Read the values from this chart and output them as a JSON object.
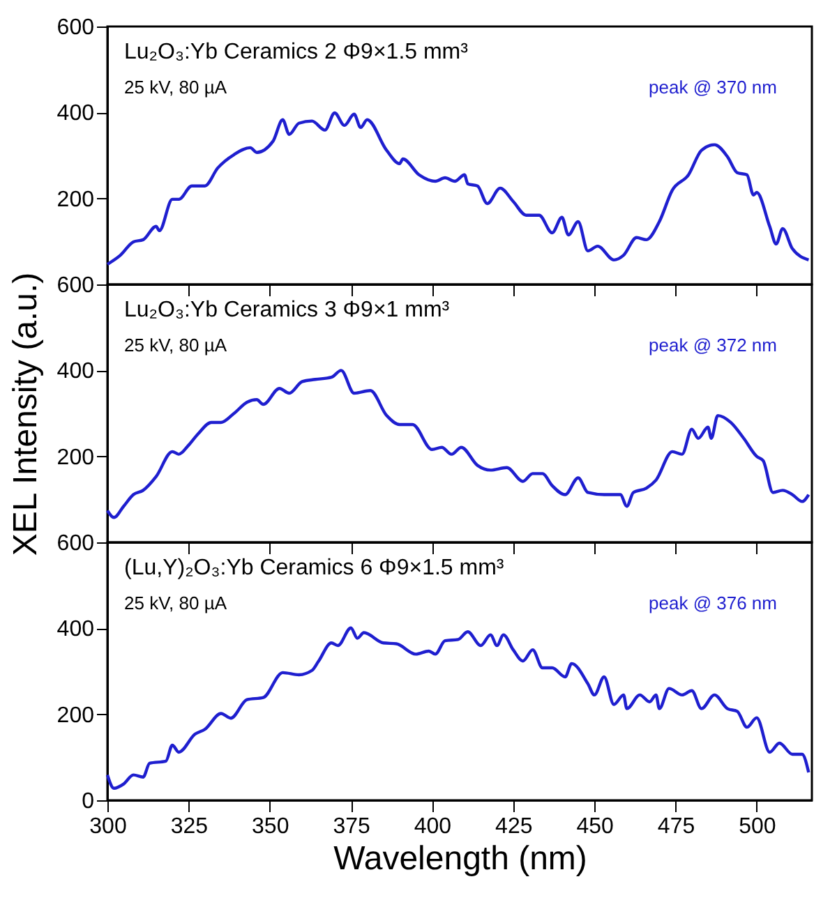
{
  "chart_data": [
    {
      "type": "line",
      "xlim": [
        300,
        517
      ],
      "ylim": [
        0,
        600
      ],
      "xticks": [
        300,
        325,
        350,
        375,
        400,
        425,
        450,
        475,
        500
      ],
      "yticks": [
        {
          "value": 0,
          "label": null
        },
        200,
        400,
        600
      ],
      "tick_labels": "y",
      "grid": false,
      "annotations": [
        "Lu₂O₃:Yb Ceramics 2  Φ9×1.5 mm³",
        "25 kV, 80 µA",
        "peak @ 370 nm"
      ],
      "series": [
        {
          "color": "#1f1fcf",
          "x": [
            300,
            304,
            308,
            311,
            315,
            316,
            320,
            322,
            326,
            330,
            334,
            339,
            344,
            346,
            351,
            354,
            356,
            359,
            363,
            367,
            370,
            373,
            376,
            378,
            380,
            386,
            390,
            391,
            396,
            401,
            404,
            407,
            410,
            411,
            414,
            417,
            421,
            425,
            429,
            433,
            437,
            440,
            442,
            445,
            448,
            451,
            456,
            459,
            463,
            466,
            470,
            474,
            479,
            483,
            487,
            491,
            494,
            497,
            499,
            500,
            504,
            506,
            508,
            511,
            516
          ],
          "values": [
            47,
            68,
            99,
            104,
            135,
            125,
            198,
            198,
            229,
            229,
            271,
            302,
            318,
            307,
            333,
            383,
            349,
            375,
            380,
            359,
            399,
            370,
            396,
            365,
            383,
            312,
            281,
            292,
            255,
            240,
            248,
            240,
            255,
            234,
            229,
            188,
            224,
            193,
            161,
            161,
            120,
            156,
            115,
            146,
            78,
            89,
            57,
            68,
            109,
            104,
            146,
            219,
            255,
            312,
            325,
            297,
            260,
            255,
            208,
            214,
            135,
            94,
            130,
            83,
            57
          ]
        }
      ]
    },
    {
      "type": "line",
      "xlim": [
        300,
        517
      ],
      "ylim": [
        0,
        600
      ],
      "xticks": [
        300,
        325,
        350,
        375,
        400,
        425,
        450,
        475,
        500
      ],
      "yticks": [
        {
          "value": 0,
          "label": null
        },
        200,
        400,
        600
      ],
      "tick_labels": "y",
      "grid": false,
      "ylabel": "XEL Intensity (a.u.)",
      "annotations": [
        "Lu₂O₃:Yb Ceramics 3  Φ9×1 mm³",
        "25 kV, 80 µA",
        "peak @ 372 nm"
      ],
      "series": [
        {
          "color": "#1f1fcf",
          "x": [
            300,
            302,
            305,
            308,
            311,
            315,
            320,
            322,
            325,
            328,
            332,
            335,
            339,
            343,
            346,
            348,
            353,
            356,
            360,
            364,
            369,
            372,
            376,
            381,
            386,
            390,
            394,
            400,
            403,
            406,
            409,
            414,
            418,
            423,
            428,
            431,
            434,
            437,
            441,
            445,
            448,
            453,
            458,
            460,
            462,
            466,
            469,
            474,
            477,
            480,
            482,
            485,
            486,
            488,
            492,
            496,
            500,
            502,
            505,
            508,
            511,
            514,
            516
          ],
          "values": [
            74,
            58,
            84,
            111,
            121,
            153,
            211,
            205,
            226,
            253,
            279,
            279,
            300,
            326,
            332,
            321,
            358,
            347,
            374,
            379,
            384,
            400,
            347,
            353,
            295,
            274,
            274,
            216,
            221,
            205,
            221,
            179,
            168,
            174,
            142,
            160,
            160,
            132,
            111,
            150,
            116,
            111,
            111,
            84,
            116,
            126,
            145,
            211,
            205,
            263,
            242,
            268,
            242,
            295,
            279,
            242,
            200,
            190,
            116,
            121,
            111,
            95,
            111
          ]
        }
      ]
    },
    {
      "type": "line",
      "xlim": [
        300,
        517
      ],
      "ylim": [
        0,
        600
      ],
      "xticks": [
        300,
        325,
        350,
        375,
        400,
        425,
        450,
        475,
        500
      ],
      "yticks": [
        0,
        200,
        400,
        600
      ],
      "grid": false,
      "xlabel": "Wavelength (nm)",
      "annotations": [
        "(Lu,Y)₂O₃:Yb Ceramics 6  Φ9×1.5 mm³",
        "25 kV, 80 µA",
        "peak @ 376 nm"
      ],
      "series": [
        {
          "color": "#1f1fcf",
          "x": [
            300,
            302,
            305,
            308,
            311,
            313,
            318,
            320,
            322,
            327,
            330,
            335,
            338,
            343,
            348,
            354,
            359,
            363,
            365,
            369,
            371,
            375,
            377,
            379,
            385,
            389,
            395,
            399,
            401,
            404,
            408,
            411,
            415,
            418,
            420,
            422,
            425,
            428,
            431,
            434,
            437,
            441,
            443,
            448,
            450,
            453,
            456,
            459,
            460,
            464,
            467,
            469,
            470,
            473,
            477,
            480,
            483,
            487,
            491,
            494,
            497,
            500,
            504,
            507,
            511,
            514,
            516
          ],
          "values": [
            59,
            28,
            38,
            59,
            54,
            86,
            91,
            128,
            112,
            154,
            165,
            202,
            191,
            234,
            239,
            297,
            292,
            302,
            323,
            366,
            360,
            401,
            377,
            390,
            366,
            364,
            340,
            347,
            340,
            371,
            374,
            392,
            360,
            385,
            360,
            385,
            350,
            324,
            350,
            308,
            308,
            287,
            318,
            271,
            245,
            287,
            223,
            245,
            213,
            245,
            229,
            245,
            213,
            260,
            245,
            255,
            213,
            245,
            213,
            207,
            170,
            192,
            112,
            133,
            107,
            107,
            65
          ]
        }
      ]
    }
  ]
}
